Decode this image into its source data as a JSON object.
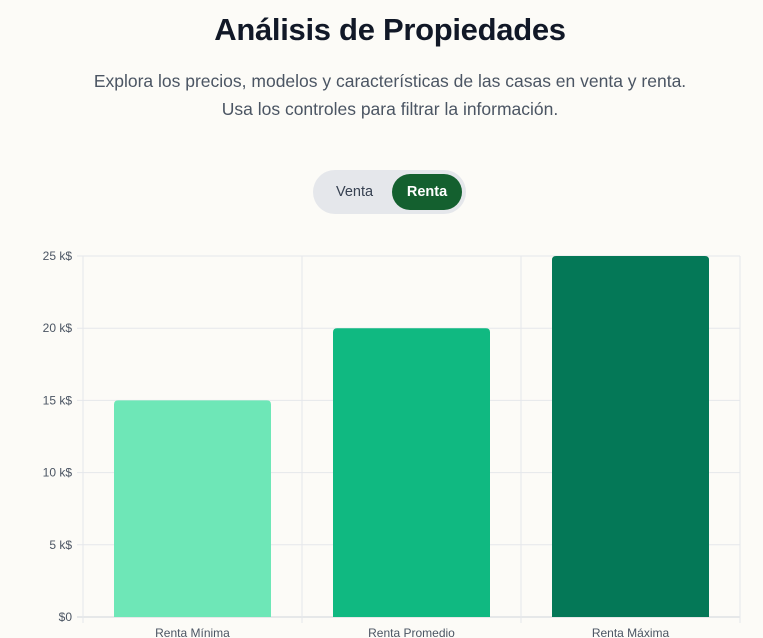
{
  "header": {
    "title": "Análisis de Propiedades",
    "subtitle_line1": "Explora los precios, modelos y características de las casas en venta y renta.",
    "subtitle_line2": "Usa los controles para filtrar la información."
  },
  "toggle": {
    "venta_label": "Venta",
    "renta_label": "Renta",
    "selected": "Renta"
  },
  "colors": {
    "toggle_active": "#14602f",
    "bar_min": "#6ee7b7",
    "bar_avg": "#10b981",
    "bar_max": "#047857"
  },
  "chart_data": {
    "type": "bar",
    "categories": [
      "Renta Mínima",
      "Renta Promedio",
      "Renta Máxima"
    ],
    "values": [
      15000,
      20000,
      25000
    ],
    "ylim": [
      0,
      25000
    ],
    "yticks": [
      0,
      5000,
      10000,
      15000,
      20000,
      25000
    ],
    "ytick_labels": [
      "$0",
      "5 k$",
      "10 k$",
      "15 k$",
      "20 k$",
      "25 k$"
    ],
    "grid": true
  }
}
